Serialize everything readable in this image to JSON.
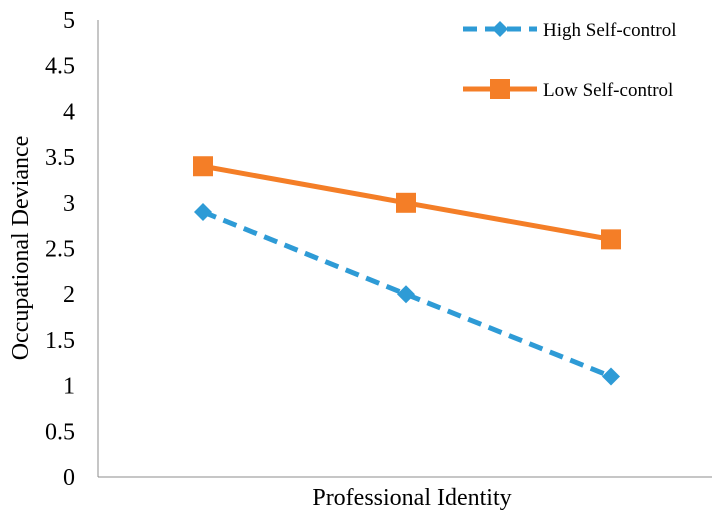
{
  "chart_data": {
    "type": "line",
    "xlabel": "Professional Identity",
    "ylabel": "Occupational Deviance",
    "ylim": [
      0,
      5
    ],
    "yticks": [
      0,
      0.5,
      1,
      1.5,
      2,
      2.5,
      3,
      3.5,
      4,
      4.5,
      5
    ],
    "ytick_labels": [
      "0",
      "0.5",
      "1",
      "1.5",
      "2",
      "2.5",
      "3",
      "3.5",
      "4",
      "4.5",
      "5"
    ],
    "x": [
      1,
      2,
      3
    ],
    "grid": false,
    "legend_position": "top-right",
    "series": [
      {
        "name": "High Self-control",
        "values": [
          2.9,
          2.0,
          1.1
        ],
        "color": "#2e9bd6",
        "line_style": "dashed",
        "marker": "diamond"
      },
      {
        "name": "Low Self-control",
        "values": [
          3.4,
          3.0,
          2.6
        ],
        "color": "#f47e27",
        "line_style": "solid",
        "marker": "square"
      }
    ]
  }
}
